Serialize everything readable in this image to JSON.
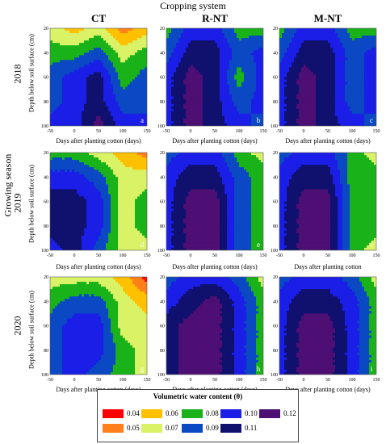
{
  "figure": {
    "supertitle": "Cropping system",
    "columns": [
      "CT",
      "R-NT",
      "M-NT"
    ],
    "rows": [
      "2018",
      "2019",
      "2020"
    ],
    "row_group_label": "Growing season",
    "y_axis_label": "Depth below soil surface (cm)",
    "x_axis_labels": [
      "Days after planting cotton (days)",
      "Days after planting cotton (days)",
      "Days after planting cotton (days)",
      "Days after planting cotton (days)",
      "Days after planting cotton (days)",
      "Days after planting cotton",
      "Days after planting cotton (days)",
      "Days after planting cotton (days)",
      "Days after planting cotton (days)"
    ],
    "panel_letters": [
      "a",
      "b",
      "c",
      "d",
      "e",
      "f",
      "g",
      "h",
      "i"
    ]
  },
  "legend": {
    "title": "Volumetric water content (θ)",
    "items": [
      {
        "label": "0.04",
        "color": "#ff0000"
      },
      {
        "label": "0.05",
        "color": "#ff7f1a"
      },
      {
        "label": "0.06",
        "color": "#ffc000"
      },
      {
        "label": "0.07",
        "color": "#d9f266"
      },
      {
        "label": "0.08",
        "color": "#19b319"
      },
      {
        "label": "0.09",
        "color": "#0a48c4"
      },
      {
        "label": "0.10",
        "color": "#1a1ee6"
      },
      {
        "label": "0.11",
        "color": "#10106e"
      },
      {
        "label": "0.12",
        "color": "#4d0f73"
      }
    ]
  },
  "chart_data": {
    "type": "heatmap",
    "x_ticks": [
      -50,
      0,
      50,
      100,
      150
    ],
    "y_ticks": [
      20,
      40,
      60,
      80,
      100
    ],
    "xlim": [
      -50,
      150
    ],
    "ylim": [
      20,
      100
    ],
    "y_inverted": true,
    "x": [
      -50,
      0,
      50,
      100,
      150
    ],
    "y": [
      20,
      40,
      60,
      80,
      100
    ],
    "panels": [
      {
        "letter": "a",
        "system": "CT",
        "year": "2018",
        "theta": [
          [
            0.07,
            0.06,
            0.07,
            0.05,
            0.06
          ],
          [
            0.08,
            0.08,
            0.09,
            0.07,
            0.08
          ],
          [
            0.09,
            0.1,
            0.11,
            0.08,
            0.09
          ],
          [
            0.09,
            0.1,
            0.11,
            0.09,
            0.09
          ],
          [
            0.1,
            0.1,
            0.12,
            0.1,
            0.1
          ]
        ]
      },
      {
        "letter": "b",
        "system": "R-NT",
        "year": "2018",
        "theta": [
          [
            0.08,
            0.1,
            0.1,
            0.08,
            0.08
          ],
          [
            0.09,
            0.11,
            0.11,
            0.09,
            0.1
          ],
          [
            0.1,
            0.12,
            0.11,
            0.08,
            0.1
          ],
          [
            0.1,
            0.12,
            0.11,
            0.09,
            0.1
          ],
          [
            0.1,
            0.12,
            0.11,
            0.1,
            0.09
          ]
        ]
      },
      {
        "letter": "c",
        "system": "M-NT",
        "year": "2018",
        "theta": [
          [
            0.08,
            0.1,
            0.1,
            0.08,
            0.08
          ],
          [
            0.09,
            0.11,
            0.11,
            0.09,
            0.1
          ],
          [
            0.1,
            0.12,
            0.11,
            0.09,
            0.1
          ],
          [
            0.1,
            0.12,
            0.11,
            0.09,
            0.1
          ],
          [
            0.1,
            0.12,
            0.11,
            0.1,
            0.09
          ]
        ]
      },
      {
        "letter": "d",
        "system": "CT",
        "year": "2019",
        "theta": [
          [
            0.08,
            0.08,
            0.07,
            0.06,
            0.05
          ],
          [
            0.1,
            0.1,
            0.09,
            0.07,
            0.07
          ],
          [
            0.11,
            0.11,
            0.1,
            0.07,
            0.08
          ],
          [
            0.11,
            0.11,
            0.1,
            0.07,
            0.08
          ],
          [
            0.1,
            0.11,
            0.09,
            0.07,
            0.07
          ]
        ]
      },
      {
        "letter": "e",
        "system": "R-NT",
        "year": "2019",
        "theta": [
          [
            0.09,
            0.1,
            0.1,
            0.08,
            0.07
          ],
          [
            0.1,
            0.11,
            0.11,
            0.09,
            0.08
          ],
          [
            0.1,
            0.12,
            0.12,
            0.09,
            0.08
          ],
          [
            0.1,
            0.12,
            0.12,
            0.09,
            0.08
          ],
          [
            0.1,
            0.12,
            0.12,
            0.09,
            0.08
          ]
        ]
      },
      {
        "letter": "f",
        "system": "M-NT",
        "year": "2019",
        "theta": [
          [
            0.09,
            0.1,
            0.1,
            0.08,
            0.07
          ],
          [
            0.1,
            0.11,
            0.11,
            0.08,
            0.08
          ],
          [
            0.1,
            0.12,
            0.12,
            0.08,
            0.08
          ],
          [
            0.1,
            0.12,
            0.12,
            0.08,
            0.08
          ],
          [
            0.1,
            0.12,
            0.12,
            0.08,
            0.07
          ]
        ]
      },
      {
        "letter": "g",
        "system": "CT",
        "year": "2020",
        "theta": [
          [
            0.07,
            0.07,
            0.07,
            0.06,
            0.04
          ],
          [
            0.08,
            0.09,
            0.09,
            0.07,
            0.06
          ],
          [
            0.09,
            0.1,
            0.1,
            0.07,
            0.07
          ],
          [
            0.09,
            0.1,
            0.1,
            0.08,
            0.07
          ],
          [
            0.09,
            0.1,
            0.09,
            0.08,
            0.07
          ]
        ]
      },
      {
        "letter": "h",
        "system": "R-NT",
        "year": "2020",
        "theta": [
          [
            0.09,
            0.1,
            0.1,
            0.09,
            0.07
          ],
          [
            0.1,
            0.11,
            0.12,
            0.1,
            0.08
          ],
          [
            0.11,
            0.12,
            0.12,
            0.1,
            0.08
          ],
          [
            0.11,
            0.12,
            0.12,
            0.1,
            0.08
          ],
          [
            0.11,
            0.12,
            0.12,
            0.1,
            0.08
          ]
        ]
      },
      {
        "letter": "i",
        "system": "M-NT",
        "year": "2020",
        "theta": [
          [
            0.09,
            0.1,
            0.1,
            0.09,
            0.07
          ],
          [
            0.1,
            0.11,
            0.11,
            0.1,
            0.08
          ],
          [
            0.1,
            0.12,
            0.12,
            0.1,
            0.08
          ],
          [
            0.1,
            0.12,
            0.12,
            0.1,
            0.08
          ],
          [
            0.1,
            0.12,
            0.12,
            0.1,
            0.08
          ]
        ]
      }
    ]
  }
}
